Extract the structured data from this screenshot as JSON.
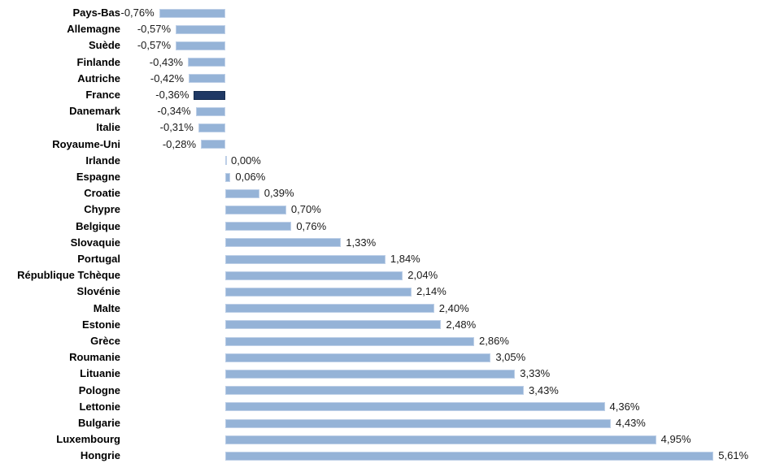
{
  "chart_data": {
    "type": "bar",
    "orientation": "horizontal",
    "title": "",
    "xlabel": "",
    "ylabel": "",
    "grid": false,
    "legend": false,
    "xlim": [
      -1.0,
      6.2
    ],
    "categories": [
      "Pays-Bas",
      "Allemagne",
      "Suède",
      "Finlande",
      "Autriche",
      "France",
      "Danemark",
      "Italie",
      "Royaume-Uni",
      "Irlande",
      "Espagne",
      "Croatie",
      "Chypre",
      "Belgique",
      "Slovaquie",
      "Portugal",
      "République Tchèque",
      "Slovénie",
      "Malte",
      "Estonie",
      "Grèce",
      "Roumanie",
      "Lituanie",
      "Pologne",
      "Lettonie",
      "Bulgarie",
      "Luxembourg",
      "Hongrie"
    ],
    "values": [
      -0.76,
      -0.57,
      -0.57,
      -0.43,
      -0.42,
      -0.36,
      -0.34,
      -0.31,
      -0.28,
      0.0,
      0.06,
      0.39,
      0.7,
      0.76,
      1.33,
      1.84,
      2.04,
      2.14,
      2.4,
      2.48,
      2.86,
      3.05,
      3.33,
      3.43,
      4.36,
      4.43,
      4.95,
      5.61
    ],
    "value_labels": [
      "-0,76%",
      "-0,57%",
      "-0,57%",
      "-0,43%",
      "-0,42%",
      "-0,36%",
      "-0,34%",
      "-0,31%",
      "-0,28%",
      "0,00%",
      "0,06%",
      "0,39%",
      "0,70%",
      "0,76%",
      "1,33%",
      "1,84%",
      "2,04%",
      "2,14%",
      "2,40%",
      "2,48%",
      "2,86%",
      "3,05%",
      "3,33%",
      "3,43%",
      "4,36%",
      "4,43%",
      "4,95%",
      "5,61%"
    ],
    "highlight_category": "France",
    "highlight_index": 5,
    "colors": {
      "bar_fill": "#95B3D7",
      "bar_border": "#BDCFE7",
      "highlight_fill": "#1F3864",
      "highlight_border": "#152C4E",
      "category_text": "#000000",
      "value_text": "#1A1A1A",
      "background": "#FFFFFF"
    }
  }
}
